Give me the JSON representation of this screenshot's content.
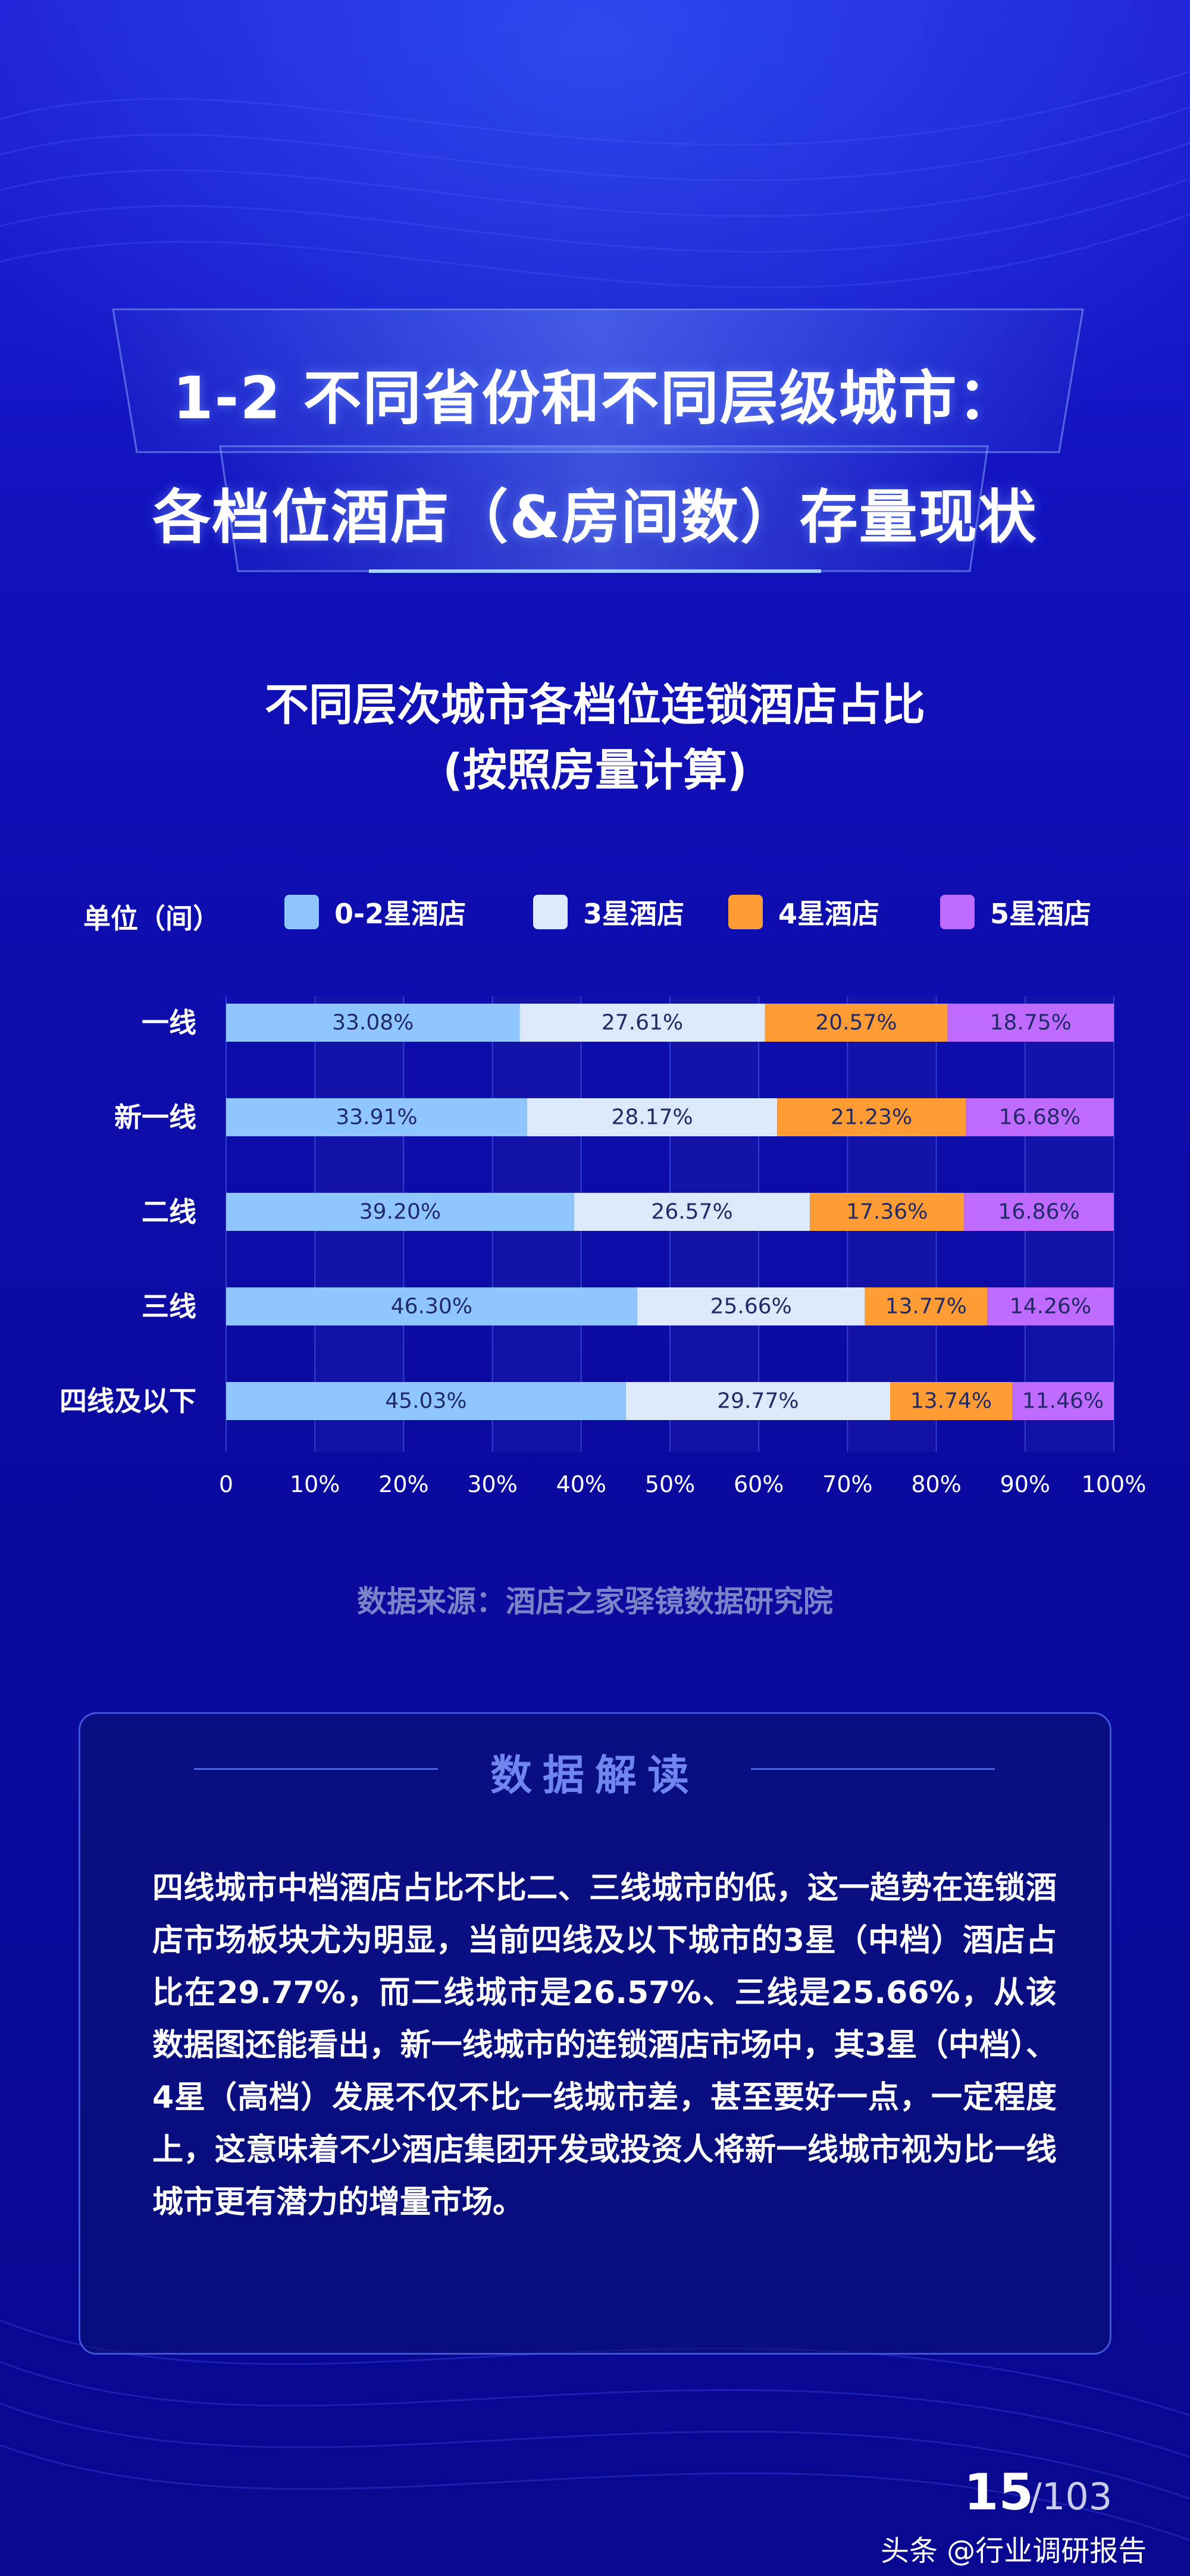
{
  "header": {
    "title_line1": "1-2 不同省份和不同层级城市：",
    "title_line2": "各档位酒店（&房间数）存量现状"
  },
  "chart_title": {
    "line1": "不同层次城市各档位连锁酒店占比",
    "line2": "(按照房量计算)"
  },
  "legend": {
    "unit": "单位（间）",
    "items": [
      "0-2星酒店",
      "3星酒店",
      "4星酒店",
      "5星酒店"
    ]
  },
  "colors": {
    "series": [
      "#8fc6ff",
      "#dbe9fb",
      "#ff9c33",
      "#c06bff"
    ],
    "label_text": "#202a66",
    "interp_title": "#6f86ee"
  },
  "chart_data": {
    "type": "bar",
    "orientation": "horizontal",
    "stacked": true,
    "categories": [
      "一线",
      "新一线",
      "二线",
      "三线",
      "四线及以下"
    ],
    "series": [
      {
        "name": "0-2星酒店",
        "values": [
          33.08,
          33.91,
          39.2,
          46.3,
          45.03
        ]
      },
      {
        "name": "3星酒店",
        "values": [
          27.61,
          28.17,
          26.57,
          25.66,
          29.77
        ]
      },
      {
        "name": "4星酒店",
        "values": [
          20.57,
          21.23,
          17.36,
          13.77,
          13.74
        ]
      },
      {
        "name": "5星酒店",
        "values": [
          18.75,
          16.68,
          16.86,
          14.26,
          11.46
        ]
      }
    ],
    "data_labels": [
      [
        "33.08%",
        "27.61%",
        "20.57%",
        "18.75%"
      ],
      [
        "33.91%",
        "28.17%",
        "21.23%",
        "16.68%"
      ],
      [
        "39.20%",
        "26.57%",
        "17.36%",
        "16.86%"
      ],
      [
        "46.30%",
        "25.66%",
        "13.77%",
        "14.26%"
      ],
      [
        "45.03%",
        "29.77%",
        "13.74%",
        "11.46%"
      ]
    ],
    "x_ticks": [
      0,
      10,
      20,
      30,
      40,
      50,
      60,
      70,
      80,
      90,
      100
    ],
    "x_tick_labels": [
      "0",
      "10%",
      "20%",
      "30%",
      "40%",
      "50%",
      "60%",
      "70%",
      "80%",
      "90%",
      "100%"
    ],
    "xlim": [
      0,
      100
    ],
    "title": "不同层次城市各档位连锁酒店占比(按照房量计算)",
    "xlabel": "",
    "ylabel": "",
    "legend_position": "top"
  },
  "source": "数据来源：酒店之家驿镜数据研究院",
  "interpretation": {
    "title": "数据解读",
    "text": "四线城市中档酒店占比不比二、三线城市的低，这一趋势在连锁酒店市场板块尤为明显，当前四线及以下城市的3星（中档）酒店占比在29.77%，而二线城市是26.57%、三线是25.66%，从该数据图还能看出，新一线城市的连锁酒店市场中，其3星（中档）、4星（高档）发展不仅不比一线城市差，甚至要好一点，一定程度上，这意味着不少酒店集团开发或投资人将新一线城市视为比一线城市更有潜力的增量市场。"
  },
  "footer": {
    "page_number": "15",
    "page_total": "/103",
    "watermark": "头条 @行业调研报告"
  }
}
